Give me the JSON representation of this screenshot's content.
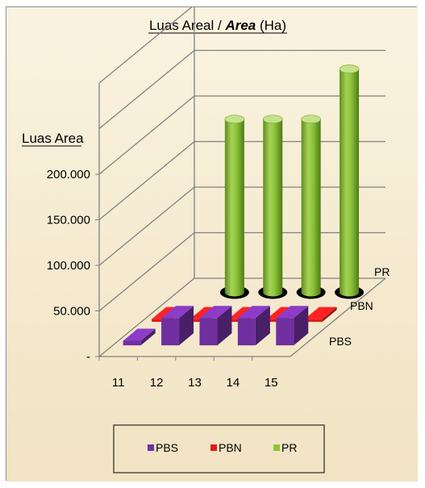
{
  "chart_data": {
    "type": "bar",
    "title_plain": "Luas Areal / ",
    "title_italic": "Area",
    "title_unit": " (Ha)",
    "ylabel": "Luas Area",
    "categories": [
      "11",
      "12",
      "13",
      "14",
      "15"
    ],
    "y_tick_labels": [
      "-",
      "50.000",
      "100.000",
      "150.000",
      "200.000"
    ],
    "ylim": [
      0,
      300000
    ],
    "series": [
      {
        "name": "PBS",
        "color": "#7030a0",
        "values": [
          5000,
          30000,
          30000,
          30000,
          30000
        ]
      },
      {
        "name": "PBN",
        "color": "#e31b1b",
        "values": [
          3000,
          3000,
          3000,
          3000,
          3000
        ]
      },
      {
        "name": "PR",
        "color": "#8fc43a",
        "values": [
          0,
          190000,
          190000,
          190000,
          245000
        ]
      }
    ],
    "legend": [
      "PBS",
      "PBN",
      "PR"
    ],
    "legend_position": "bottom",
    "background": "#f6edd6",
    "grid": true
  }
}
